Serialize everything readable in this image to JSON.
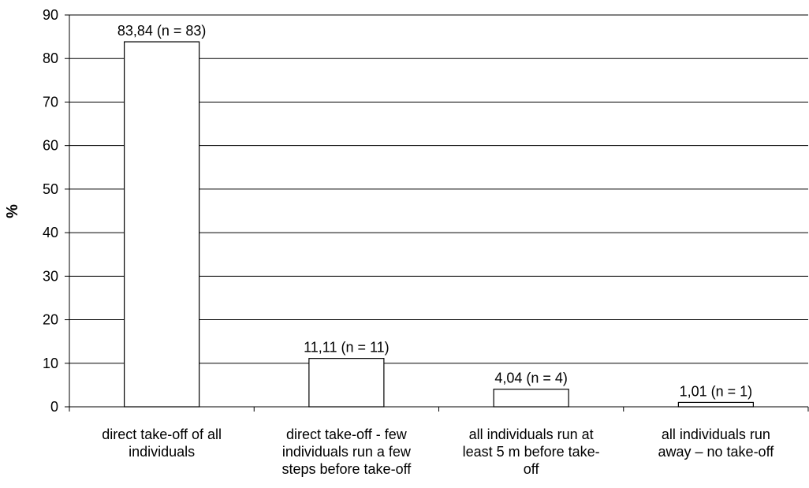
{
  "chart_data": {
    "type": "bar",
    "title": "",
    "xlabel": "",
    "ylabel": "%",
    "ylim": [
      0,
      90
    ],
    "yticks": [
      0,
      10,
      20,
      30,
      40,
      50,
      60,
      70,
      80,
      90
    ],
    "grid": true,
    "legend": "none",
    "bar_fill": "#ffffff",
    "bar_stroke": "#000000",
    "categories": [
      [
        "direct take-off of all",
        "individuals"
      ],
      [
        "direct take-off - few",
        "individuals run a few",
        "steps before take-off"
      ],
      [
        "all individuals run at",
        "least 5 m before take-",
        "off"
      ],
      [
        "all individuals run",
        "away – no take-off"
      ]
    ],
    "values": [
      83.84,
      11.11,
      4.04,
      1.01
    ],
    "data_labels": [
      "83,84 (n = 83)",
      "11,11 (n = 11)",
      "4,04 (n = 4)",
      "1,01 (n = 1)"
    ]
  }
}
